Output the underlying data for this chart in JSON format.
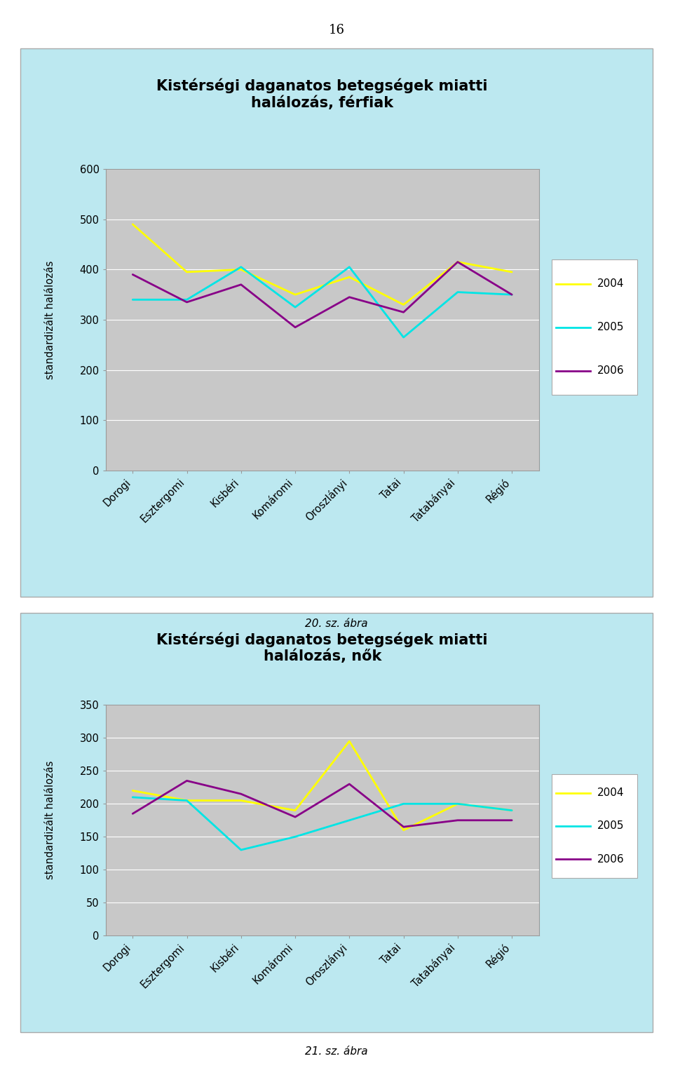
{
  "page_number": "16",
  "chart1": {
    "title": "Kistérségi daganatos betegségek miatti\nhalálozás, férfiak",
    "ylabel": "standardizált halálozás",
    "categories": [
      "Dorogi",
      "Esztergomi",
      "Kisbéri",
      "Komáromi",
      "Oroszlányi",
      "Tatai",
      "Tatabányai",
      "Régió"
    ],
    "series": {
      "2004": [
        490,
        395,
        400,
        350,
        385,
        330,
        415,
        395
      ],
      "2005": [
        340,
        340,
        405,
        325,
        405,
        265,
        355,
        350
      ],
      "2006": [
        390,
        335,
        370,
        285,
        345,
        315,
        415,
        350
      ]
    },
    "colors": {
      "2004": "#ffff00",
      "2005": "#00e5e5",
      "2006": "#880088"
    },
    "ylim": [
      0,
      600
    ],
    "yticks": [
      0,
      100,
      200,
      300,
      400,
      500,
      600
    ],
    "caption": "20. sz. ábra"
  },
  "chart2": {
    "title": "Kistérségi daganatos betegségek miatti\nhalálozás, nők",
    "ylabel": "standardizált halálozás",
    "categories": [
      "Dorogi",
      "Esztergomi",
      "Kisbéri",
      "Komáromi",
      "Oroszlányi",
      "Tatai",
      "Tatabányai",
      "Régió"
    ],
    "series": {
      "2004": [
        220,
        205,
        205,
        190,
        295,
        160,
        200,
        190
      ],
      "2005": [
        210,
        205,
        130,
        150,
        175,
        200,
        200,
        190
      ],
      "2006": [
        185,
        235,
        215,
        180,
        230,
        165,
        175,
        175
      ]
    },
    "colors": {
      "2004": "#ffff00",
      "2005": "#00e5e5",
      "2006": "#880088"
    },
    "ylim": [
      0,
      350
    ],
    "yticks": [
      0,
      50,
      100,
      150,
      200,
      250,
      300,
      350
    ],
    "caption": "21. sz. ábra"
  },
  "panel_bg": "#bce8f0",
  "plot_area_color": "#c8c8c8",
  "outer_bg": "#ffffff",
  "legend_bg": "#ffffff",
  "grid_color": "#ffffff",
  "spine_color": "#999999"
}
